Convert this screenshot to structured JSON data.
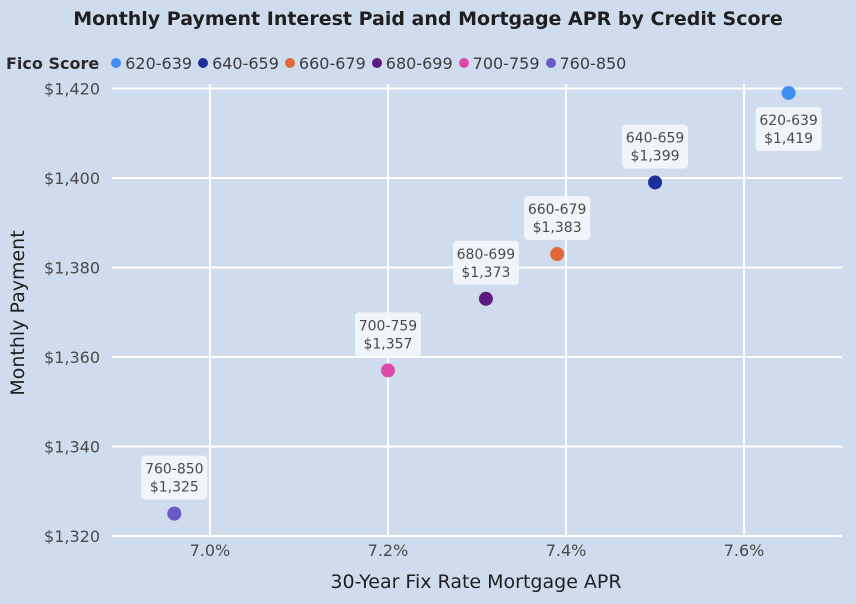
{
  "legend": {
    "title": "Fico Score"
  },
  "chart_data": {
    "type": "scatter",
    "title": "Monthly Payment Interest Paid and Mortgage APR by Credit Score",
    "xlabel": "30-Year Fix Rate Mortgage APR",
    "ylabel": "Monthly Payment",
    "xlim": [
      6.89,
      7.71
    ],
    "ylim": [
      1320,
      1421
    ],
    "x_ticks": [
      7.0,
      7.2,
      7.4,
      7.6
    ],
    "x_tick_labels": [
      "7.0%",
      "7.2%",
      "7.4%",
      "7.6%"
    ],
    "y_ticks": [
      1320,
      1340,
      1360,
      1380,
      1400,
      1420
    ],
    "y_tick_labels": [
      "$1,320",
      "$1,340",
      "$1,360",
      "$1,380",
      "$1,400",
      "$1,420"
    ],
    "grid": true,
    "legend_position": "top-left",
    "series": [
      {
        "name": "620-639",
        "color": "#3f8ff0",
        "x": 7.65,
        "y": 1419,
        "label_line1": "620-639",
        "label_line2": "$1,419",
        "label_pos": "below"
      },
      {
        "name": "640-659",
        "color": "#1d2f9c",
        "x": 7.5,
        "y": 1399,
        "label_line1": "640-659",
        "label_line2": "$1,399",
        "label_pos": "above"
      },
      {
        "name": "660-679",
        "color": "#e2683a",
        "x": 7.39,
        "y": 1383,
        "label_line1": "660-679",
        "label_line2": "$1,383",
        "label_pos": "above"
      },
      {
        "name": "680-699",
        "color": "#5c1a82",
        "x": 7.31,
        "y": 1373,
        "label_line1": "680-699",
        "label_line2": "$1,373",
        "label_pos": "above"
      },
      {
        "name": "700-759",
        "color": "#df4aa8",
        "x": 7.2,
        "y": 1357,
        "label_line1": "700-759",
        "label_line2": "$1,357",
        "label_pos": "above"
      },
      {
        "name": "760-850",
        "color": "#6a5ac6",
        "x": 6.96,
        "y": 1325,
        "label_line1": "760-850",
        "label_line2": "$1,325",
        "label_pos": "above"
      }
    ]
  }
}
